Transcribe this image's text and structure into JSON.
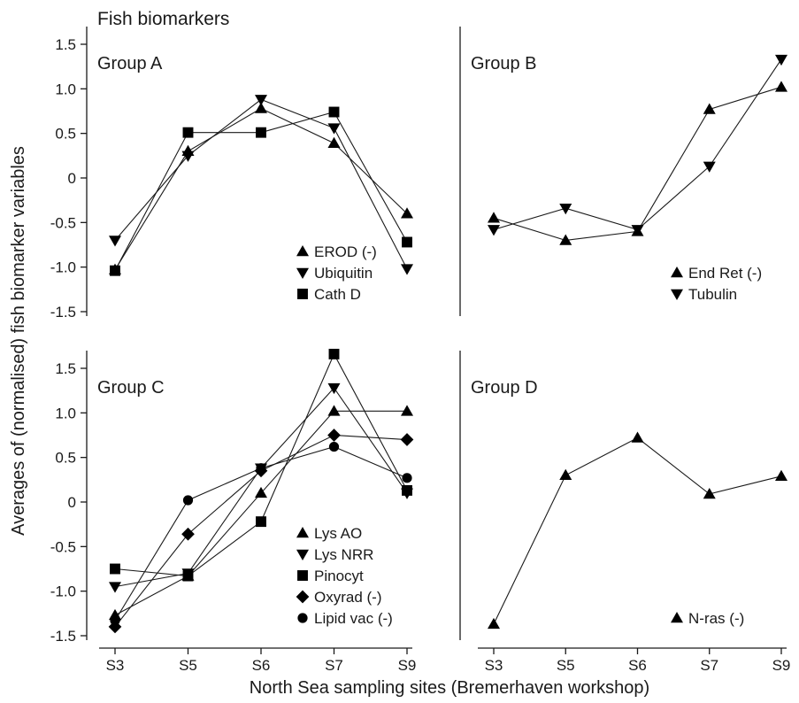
{
  "figure": {
    "title": "Fish biomarkers",
    "ylabel": "Averages of (normalised) fish biomarker variables",
    "xlabel": "North Sea sampling sites (Bremerhaven  workshop)"
  },
  "colors": {
    "ink": "#000000",
    "background": "#ffffff"
  },
  "chart_data": [
    {
      "type": "line",
      "panel": "top-left",
      "title": "Group A",
      "categories": [
        "S3",
        "S5",
        "S6",
        "S7",
        "S9"
      ],
      "ylim": [
        -1.5,
        1.5
      ],
      "yticks": [
        -1.5,
        -1.0,
        -0.5,
        0,
        0.5,
        1.0,
        1.5
      ],
      "ytick_labels": [
        "-1.5",
        "-1.0",
        "-0.5",
        "0",
        "0.5",
        "1.0",
        "1.5"
      ],
      "show_yticks": true,
      "show_xticks": false,
      "legend": "bottom-right",
      "grid": false,
      "series": [
        {
          "name": "EROD (-)",
          "marker": "triangle-up",
          "values": [
            -1.03,
            0.3,
            0.78,
            0.39,
            -0.4
          ]
        },
        {
          "name": "Ubiquitin",
          "marker": "triangle-down",
          "values": [
            -0.7,
            0.25,
            0.88,
            0.56,
            -1.02
          ]
        },
        {
          "name": "Cath D",
          "marker": "square",
          "values": [
            -1.04,
            0.51,
            0.51,
            0.74,
            -0.72
          ]
        }
      ]
    },
    {
      "type": "line",
      "panel": "top-right",
      "title": "Group B",
      "categories": [
        "S3",
        "S5",
        "S6",
        "S7",
        "S9"
      ],
      "ylim": [
        -1.5,
        1.5
      ],
      "show_yticks": false,
      "show_xticks": false,
      "legend": "bottom-right",
      "grid": false,
      "series": [
        {
          "name": "End Ret (-)",
          "marker": "triangle-up",
          "values": [
            -0.45,
            -0.7,
            -0.6,
            0.77,
            1.02
          ]
        },
        {
          "name": "Tubulin",
          "marker": "triangle-down",
          "values": [
            -0.58,
            -0.34,
            -0.58,
            0.13,
            1.33
          ]
        }
      ]
    },
    {
      "type": "line",
      "panel": "bottom-left",
      "title": "Group C",
      "categories": [
        "S3",
        "S5",
        "S6",
        "S7",
        "S9"
      ],
      "ylim": [
        -1.5,
        1.5
      ],
      "yticks": [
        -1.5,
        -1.0,
        -0.5,
        0,
        0.5,
        1.0,
        1.5
      ],
      "ytick_labels": [
        "-1.5",
        "-1.0",
        "-0.5",
        "0",
        "0.5",
        "1.0",
        "1.5"
      ],
      "show_yticks": true,
      "show_xticks": true,
      "legend": "bottom-right",
      "grid": false,
      "series": [
        {
          "name": "Lys AO",
          "marker": "triangle-up",
          "values": [
            -1.27,
            -0.83,
            0.1,
            1.02,
            1.02
          ]
        },
        {
          "name": "Lys NRR",
          "marker": "triangle-down",
          "values": [
            -0.95,
            -0.8,
            0.38,
            1.28,
            0.1
          ]
        },
        {
          "name": "Pinocyt",
          "marker": "square",
          "values": [
            -0.75,
            -0.83,
            -0.22,
            1.66,
            0.13
          ]
        },
        {
          "name": "Oxyrad (-)",
          "marker": "diamond",
          "values": [
            -1.4,
            -0.36,
            0.35,
            0.75,
            0.7
          ]
        },
        {
          "name": "Lipid vac (-)",
          "marker": "circle",
          "values": [
            -1.33,
            0.02,
            0.38,
            0.62,
            0.27
          ]
        }
      ]
    },
    {
      "type": "line",
      "panel": "bottom-right",
      "title": "Group D",
      "categories": [
        "S3",
        "S5",
        "S6",
        "S7",
        "S9"
      ],
      "ylim": [
        -1.5,
        1.5
      ],
      "show_yticks": false,
      "show_xticks": true,
      "legend": "bottom-right",
      "grid": false,
      "series": [
        {
          "name": "N-ras (-)",
          "marker": "triangle-up",
          "values": [
            -1.37,
            0.3,
            0.72,
            0.09,
            0.29
          ]
        }
      ]
    }
  ]
}
